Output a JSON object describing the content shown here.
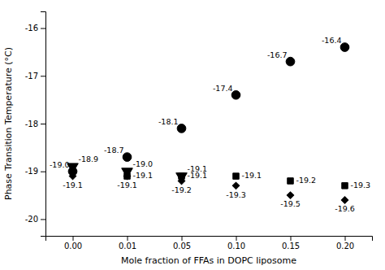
{
  "chart_data": {
    "type": "scatter",
    "xlabel": "Mole fraction of FFAs in DOPC liposome",
    "ylabel": "Phase Transition Temperature (°C)",
    "categories": [
      "0.00",
      "0.01",
      "0.05",
      "0.10",
      "0.15",
      "0.20"
    ],
    "ylim": [
      -20.35,
      -15.65
    ],
    "yticks": [
      -20,
      -19,
      -18,
      -17,
      -16
    ],
    "grid": false,
    "data_labels": true,
    "series": [
      {
        "marker": "circle",
        "color": "#000000",
        "values": [
          -19.0,
          -18.7,
          -18.1,
          -17.4,
          -16.7,
          -16.4
        ],
        "value_labels": [
          "-19.0",
          "-18.7",
          "-18.1",
          "-17.4",
          "-16.7",
          "-16.4"
        ]
      },
      {
        "marker": "triangle-down",
        "color": "#000000",
        "values": [
          -18.9,
          -19.0,
          -19.1,
          null,
          null,
          null
        ],
        "value_labels": [
          "-18.9",
          "-19.0",
          "-19.1",
          null,
          null,
          null
        ]
      },
      {
        "marker": "square",
        "color": "#000000",
        "values": [
          null,
          -19.1,
          -19.1,
          -19.1,
          -19.2,
          -19.3
        ],
        "value_labels": [
          null,
          "-19.1",
          "-19.1",
          "-19.1",
          "-19.2",
          "-19.3"
        ]
      },
      {
        "marker": "diamond",
        "color": "#000000",
        "values": [
          -19.1,
          -19.1,
          -19.2,
          -19.3,
          -19.5,
          -19.6
        ],
        "value_labels": [
          "-19.1",
          "-19.1",
          "-19.2",
          "-19.3",
          "-19.5",
          "-19.6"
        ]
      }
    ]
  }
}
